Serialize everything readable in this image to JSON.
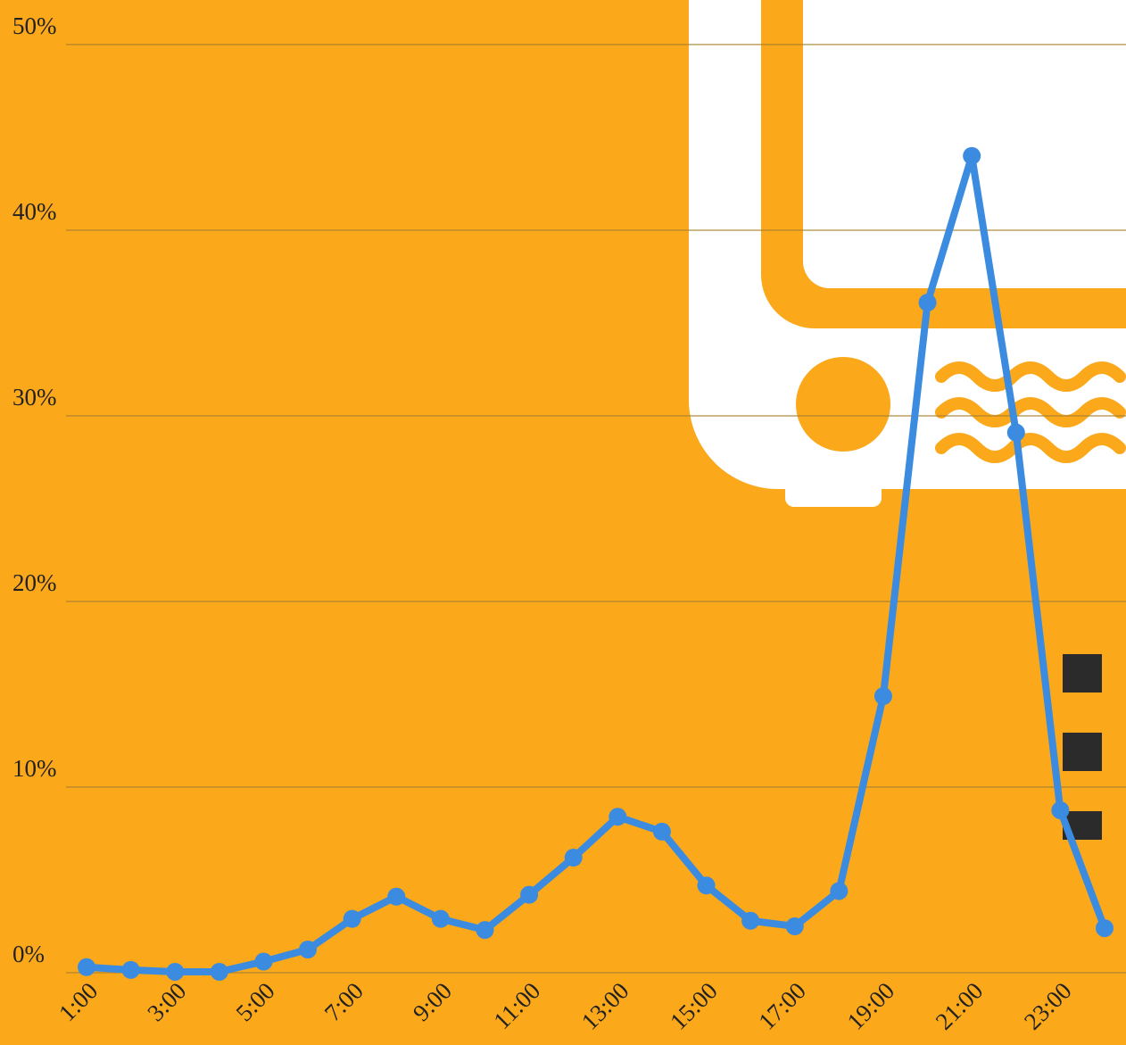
{
  "chart_data": {
    "type": "line",
    "categories": [
      "1:00",
      null,
      "3:00",
      null,
      "5:00",
      null,
      "7:00",
      null,
      "9:00",
      null,
      "11:00",
      null,
      "13:00",
      null,
      "15:00",
      null,
      "17:00",
      null,
      "19:00",
      null,
      "21:00",
      null,
      "23:00",
      null
    ],
    "series": [
      {
        "color": "#3b8be0",
        "values": [
          0.3,
          0.15,
          0.05,
          0.05,
          0.6,
          1.25,
          2.9,
          4.1,
          2.9,
          2.3,
          4.2,
          6.2,
          8.4,
          7.6,
          4.7,
          2.8,
          2.5,
          4.4,
          14.9,
          36.1,
          44.0,
          29.1,
          8.75,
          2.4
        ]
      }
    ],
    "ylim": [
      0,
      52.4
    ],
    "yticks": [
      {
        "value": 0,
        "label": "0%"
      },
      {
        "value": 10,
        "label": "10%"
      },
      {
        "value": 20,
        "label": "20%"
      },
      {
        "value": 30,
        "label": "30%"
      },
      {
        "value": 40,
        "label": "40%"
      },
      {
        "value": 50,
        "label": "50%"
      }
    ],
    "grid": true
  }
}
